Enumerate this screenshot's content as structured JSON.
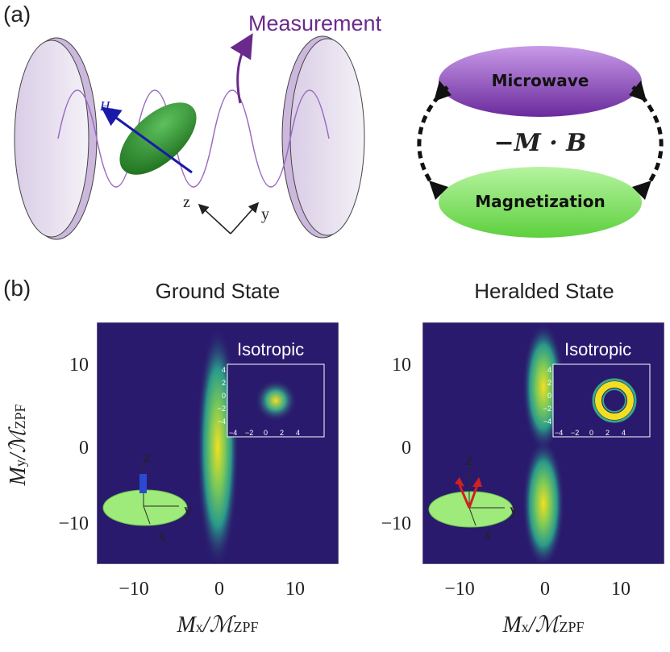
{
  "panel_a": {
    "label": "(a)",
    "measurement_label": "Measurement",
    "field_label": "H",
    "field_sub": "0",
    "axis_z": "z",
    "axis_y": "y",
    "microwave_label": "Microwave",
    "magnetization_label": "Magnetization",
    "coupling_label": "−M · B",
    "colors": {
      "purple": "#7b3aa8",
      "green": "#7ee06a",
      "dark_green": "#2e8b2e",
      "blue": "#1a1aa8"
    }
  },
  "panel_b": {
    "label": "(b)",
    "x_label_main": "M",
    "x_label_sub": "x",
    "y_label_main": "M",
    "y_label_sub": "y",
    "norm_main": "/ℳ",
    "norm_sub": "ZPF",
    "y_ticks": [
      "10",
      "0",
      "−10"
    ],
    "x_ticks": [
      "−10",
      "0",
      "10"
    ],
    "left_title": "Ground State",
    "right_title": "Heralded State",
    "inset_title": "Isotropic",
    "inset_ticks_y": [
      "4",
      "2",
      "0",
      "−2",
      "−4"
    ],
    "inset_ticks_x": [
      "−4",
      "−2",
      "0",
      "2",
      "4"
    ],
    "sphere_axis_z": "z",
    "sphere_axis_y": "y",
    "sphere_axis_x": "x",
    "colors": {
      "background": "#2a1a6e",
      "peak": "#f2e020",
      "mid": "#2aa88a"
    }
  },
  "chart_data": [
    {
      "type": "heatmap",
      "title": "Ground State",
      "xlabel": "Mx/MZPF",
      "ylabel": "My/MZPF",
      "xlim": [
        -15,
        15
      ],
      "ylim": [
        -15,
        15
      ],
      "x_ticks": [
        -10,
        0,
        10
      ],
      "y_ticks": [
        -10,
        0,
        10
      ],
      "distribution": "single gaussian lobe centered at (0,0), elongated along y",
      "inset": {
        "title": "Isotropic",
        "xlim": [
          -5,
          5
        ],
        "ylim": [
          -5,
          5
        ],
        "distribution": "gaussian spot at origin"
      }
    },
    {
      "type": "heatmap",
      "title": "Heralded State",
      "xlabel": "Mx/MZPF",
      "ylabel": "My/MZPF",
      "xlim": [
        -15,
        15
      ],
      "ylim": [
        -15,
        15
      ],
      "x_ticks": [
        -10,
        0,
        10
      ],
      "y_ticks": [
        -10,
        0,
        10
      ],
      "distribution": "two lobes centered near (0,7) and (0,-7) with a node at origin",
      "inset": {
        "title": "Isotropic",
        "xlim": [
          -5,
          5
        ],
        "ylim": [
          -5,
          5
        ],
        "distribution": "ring around origin"
      }
    }
  ]
}
